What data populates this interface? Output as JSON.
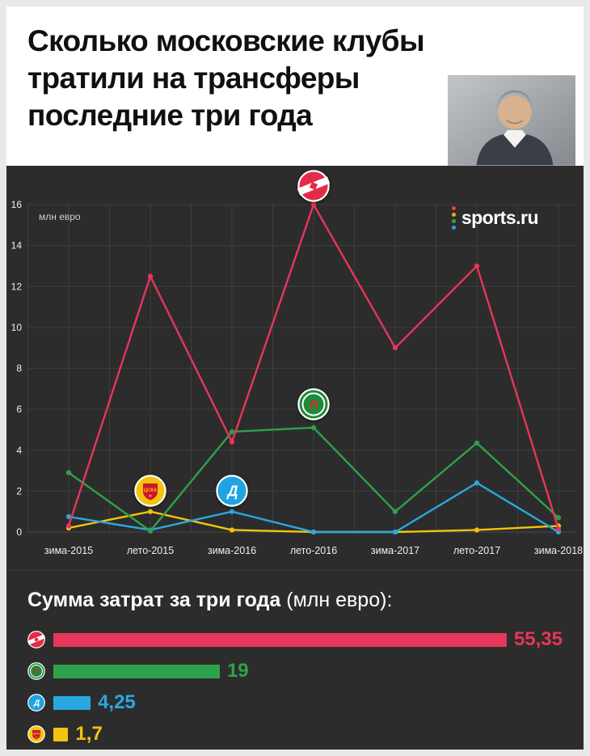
{
  "header": {
    "title": "Сколько московские клубы тратили на трансферы последние три года"
  },
  "brand": {
    "logo_text": "sports.ru",
    "dot_colors": [
      "#e8402c",
      "#f2a71b",
      "#2ea24b",
      "#29a8e0"
    ]
  },
  "chart_data": {
    "type": "line",
    "title": "",
    "xlabel": "",
    "ylabel": "млн евро",
    "ylim": [
      0,
      16
    ],
    "yticks": [
      0,
      2,
      4,
      6,
      8,
      10,
      12,
      14,
      16
    ],
    "grid": true,
    "legend": "club logos placed on chart",
    "categories": [
      "зима-2015",
      "лето-2015",
      "зима-2016",
      "лето-2016",
      "зима-2017",
      "лето-2017",
      "зима-2018"
    ],
    "series": [
      {
        "name": "Спартак",
        "club": "spartak",
        "color": "#e6365a",
        "values": [
          0.3,
          12.5,
          4.4,
          16,
          9,
          13,
          0.15
        ]
      },
      {
        "name": "Локомотив",
        "club": "lokomotiv",
        "color": "#2ea24b",
        "values": [
          2.9,
          0.05,
          4.9,
          5.1,
          1,
          4.35,
          0.7
        ]
      },
      {
        "name": "Динамо",
        "club": "dynamo",
        "color": "#29a8e0",
        "values": [
          0.75,
          0.1,
          1,
          0,
          0,
          2.4,
          0
        ]
      },
      {
        "name": "ЦСКА",
        "club": "cska",
        "color": "#f1c40f",
        "values": [
          0.2,
          1,
          0.1,
          0,
          0,
          0.1,
          0.3
        ]
      }
    ],
    "logo_markers": [
      {
        "club": "spartak",
        "category": "лето-2016",
        "value": 16.9
      },
      {
        "club": "lokomotiv",
        "category": "лето-2016",
        "value": 6.25
      },
      {
        "club": "cska",
        "category": "лето-2015",
        "value": 2.0
      },
      {
        "club": "dynamo",
        "category": "зима-2016",
        "value": 2.0
      }
    ]
  },
  "summary": {
    "heading_bold": "Сумма затрат за три года",
    "heading_normal": " (млн евро):",
    "bars": [
      {
        "club": "spartak",
        "name": "Спартак",
        "label": "55,35",
        "value": 55.35,
        "color": "#e6365a"
      },
      {
        "club": "lokomotiv",
        "name": "Локомотив",
        "label": "19",
        "value": 19,
        "color": "#2ea24b"
      },
      {
        "club": "dynamo",
        "name": "Динамо",
        "label": "4,25",
        "value": 4.25,
        "color": "#29a8e0"
      },
      {
        "club": "cska",
        "name": "ЦСКА",
        "label": "1,7",
        "value": 1.7,
        "color": "#f1c40f"
      }
    ]
  }
}
